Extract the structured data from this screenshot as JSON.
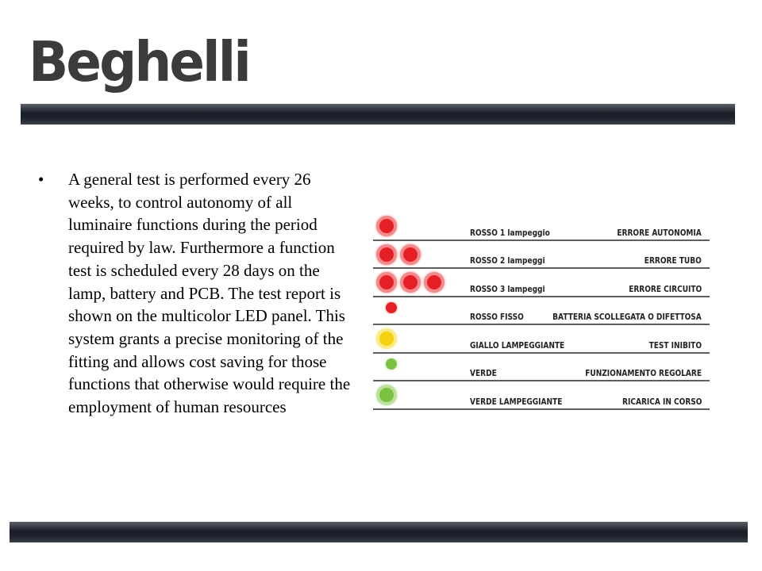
{
  "brand": {
    "logo_text": "Beghelli",
    "logo_color": "#3b3b3d"
  },
  "content": {
    "bullet": "•",
    "paragraph": "A general test is performed every 26 weeks, to control autonomy of all luminaire functions during the period required by law. Furthermore a function test is scheduled every 28 days on the lamp, battery and PCB. The test report is shown on the multicolor LED panel. This system grants a precise monitoring of the fitting and allows cost saving for those functions that otherwise would require the employment of human resources"
  },
  "led_panel": {
    "rows": [
      {
        "count": 1,
        "style": "ring",
        "color": "red",
        "label": "ROSSO 1 lampeggio",
        "meaning": "ERRORE AUTONOMIA"
      },
      {
        "count": 2,
        "style": "ring",
        "color": "red",
        "label": "ROSSO 2 lampeggi",
        "meaning": "ERRORE TUBO"
      },
      {
        "count": 3,
        "style": "ring",
        "color": "red",
        "label": "ROSSO 3 lampeggi",
        "meaning": "ERRORE CIRCUITO"
      },
      {
        "count": 1,
        "style": "dot",
        "color": "red",
        "label": "ROSSO FISSO",
        "meaning": "BATTERIA SCOLLEGATA O DIFETTOSA"
      },
      {
        "count": 1,
        "style": "ring",
        "color": "yellow",
        "label": "GIALLO LAMPEGGIANTE",
        "meaning": "TEST INIBITO"
      },
      {
        "count": 1,
        "style": "dot",
        "color": "green",
        "label": "VERDE",
        "meaning": "FUNZIONAMENTO REGOLARE"
      },
      {
        "count": 1,
        "style": "ring",
        "color": "green",
        "label": "VERDE LAMPEGGIANTE",
        "meaning": "RICARICA IN CORSO"
      }
    ],
    "colors": {
      "red": {
        "core": "#e41f26",
        "ring": "#f28a8c"
      },
      "yellow": {
        "core": "#f4d20f",
        "ring": "#f9eb8a"
      },
      "green": {
        "core": "#7cc242",
        "ring": "#bde0a0"
      }
    }
  }
}
